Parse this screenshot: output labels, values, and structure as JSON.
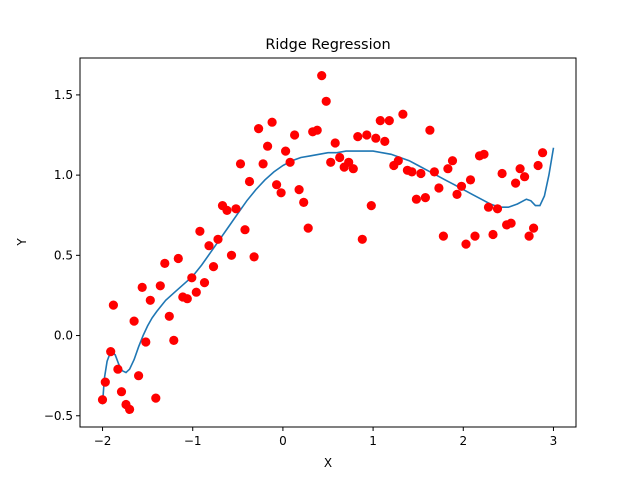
{
  "chart_data": {
    "type": "scatter",
    "title": "Ridge Regression",
    "xlabel": "X",
    "ylabel": "Y",
    "xlim": [
      -2.25,
      3.25
    ],
    "ylim": [
      -0.57,
      1.73
    ],
    "xticks": [
      -2,
      -1,
      0,
      1,
      2,
      3
    ],
    "yticks": [
      -0.5,
      0.0,
      0.5,
      1.0,
      1.5
    ],
    "ytick_labels": [
      "−0.5",
      "0.0",
      "0.5",
      "1.0",
      "1.5"
    ],
    "xtick_labels": [
      "−2",
      "−1",
      "0",
      "1",
      "2",
      "3"
    ],
    "grid": false,
    "series": [
      {
        "kind": "scatter",
        "color": "#ff0000",
        "points": [
          [
            -2.0,
            -0.4
          ],
          [
            -1.97,
            -0.29
          ],
          [
            -1.91,
            -0.1
          ],
          [
            -1.88,
            0.19
          ],
          [
            -1.83,
            -0.21
          ],
          [
            -1.79,
            -0.35
          ],
          [
            -1.74,
            -0.43
          ],
          [
            -1.7,
            -0.46
          ],
          [
            -1.65,
            0.09
          ],
          [
            -1.6,
            -0.25
          ],
          [
            -1.56,
            0.3
          ],
          [
            -1.52,
            -0.04
          ],
          [
            -1.47,
            0.22
          ],
          [
            -1.41,
            -0.39
          ],
          [
            -1.36,
            0.31
          ],
          [
            -1.31,
            0.45
          ],
          [
            -1.26,
            0.12
          ],
          [
            -1.21,
            -0.03
          ],
          [
            -1.16,
            0.48
          ],
          [
            -1.11,
            0.24
          ],
          [
            -1.06,
            0.23
          ],
          [
            -1.01,
            0.36
          ],
          [
            -0.96,
            0.27
          ],
          [
            -0.92,
            0.65
          ],
          [
            -0.87,
            0.33
          ],
          [
            -0.82,
            0.56
          ],
          [
            -0.77,
            0.43
          ],
          [
            -0.72,
            0.6
          ],
          [
            -0.67,
            0.81
          ],
          [
            -0.62,
            0.78
          ],
          [
            -0.57,
            0.5
          ],
          [
            -0.52,
            0.79
          ],
          [
            -0.47,
            1.07
          ],
          [
            -0.42,
            0.66
          ],
          [
            -0.37,
            0.96
          ],
          [
            -0.32,
            0.49
          ],
          [
            -0.27,
            1.29
          ],
          [
            -0.22,
            1.07
          ],
          [
            -0.17,
            1.18
          ],
          [
            -0.12,
            1.33
          ],
          [
            -0.07,
            0.94
          ],
          [
            -0.02,
            0.89
          ],
          [
            0.03,
            1.15
          ],
          [
            0.08,
            1.08
          ],
          [
            0.13,
            1.25
          ],
          [
            0.18,
            0.91
          ],
          [
            0.23,
            0.83
          ],
          [
            0.28,
            0.67
          ],
          [
            0.33,
            1.27
          ],
          [
            0.38,
            1.28
          ],
          [
            0.43,
            1.62
          ],
          [
            0.48,
            1.46
          ],
          [
            0.53,
            1.08
          ],
          [
            0.58,
            1.2
          ],
          [
            0.63,
            1.11
          ],
          [
            0.68,
            1.05
          ],
          [
            0.73,
            1.08
          ],
          [
            0.78,
            1.04
          ],
          [
            0.83,
            1.24
          ],
          [
            0.88,
            0.6
          ],
          [
            0.93,
            1.25
          ],
          [
            0.98,
            0.81
          ],
          [
            1.03,
            1.23
          ],
          [
            1.08,
            1.34
          ],
          [
            1.13,
            1.21
          ],
          [
            1.18,
            1.34
          ],
          [
            1.23,
            1.06
          ],
          [
            1.28,
            1.09
          ],
          [
            1.33,
            1.38
          ],
          [
            1.38,
            1.03
          ],
          [
            1.43,
            1.02
          ],
          [
            1.48,
            0.85
          ],
          [
            1.53,
            1.01
          ],
          [
            1.58,
            0.86
          ],
          [
            1.63,
            1.28
          ],
          [
            1.68,
            1.02
          ],
          [
            1.73,
            0.92
          ],
          [
            1.78,
            0.62
          ],
          [
            1.83,
            1.04
          ],
          [
            1.88,
            1.09
          ],
          [
            1.93,
            0.88
          ],
          [
            1.98,
            0.93
          ],
          [
            2.03,
            0.57
          ],
          [
            2.08,
            0.97
          ],
          [
            2.13,
            0.62
          ],
          [
            2.18,
            1.12
          ],
          [
            2.23,
            1.13
          ],
          [
            2.28,
            0.8
          ],
          [
            2.33,
            0.63
          ],
          [
            2.38,
            0.79
          ],
          [
            2.43,
            1.01
          ],
          [
            2.48,
            0.69
          ],
          [
            2.53,
            0.7
          ],
          [
            2.58,
            0.95
          ],
          [
            2.63,
            1.04
          ],
          [
            2.68,
            0.99
          ],
          [
            2.73,
            0.62
          ],
          [
            2.78,
            0.67
          ],
          [
            2.83,
            1.06
          ],
          [
            2.88,
            1.14
          ]
        ]
      },
      {
        "kind": "line",
        "color": "#1f77b4",
        "points": [
          [
            -2.0,
            -0.43
          ],
          [
            -1.98,
            -0.27
          ],
          [
            -1.95,
            -0.16
          ],
          [
            -1.91,
            -0.1
          ],
          [
            -1.86,
            -0.12
          ],
          [
            -1.82,
            -0.18
          ],
          [
            -1.78,
            -0.22
          ],
          [
            -1.74,
            -0.23
          ],
          [
            -1.7,
            -0.21
          ],
          [
            -1.65,
            -0.15
          ],
          [
            -1.6,
            -0.07
          ],
          [
            -1.55,
            0.0
          ],
          [
            -1.5,
            0.06
          ],
          [
            -1.45,
            0.11
          ],
          [
            -1.4,
            0.15
          ],
          [
            -1.3,
            0.22
          ],
          [
            -1.2,
            0.27
          ],
          [
            -1.1,
            0.32
          ],
          [
            -1.0,
            0.37
          ],
          [
            -0.9,
            0.44
          ],
          [
            -0.8,
            0.52
          ],
          [
            -0.7,
            0.6
          ],
          [
            -0.6,
            0.68
          ],
          [
            -0.5,
            0.76
          ],
          [
            -0.4,
            0.84
          ],
          [
            -0.3,
            0.91
          ],
          [
            -0.2,
            0.97
          ],
          [
            -0.1,
            1.02
          ],
          [
            0.0,
            1.06
          ],
          [
            0.1,
            1.09
          ],
          [
            0.2,
            1.11
          ],
          [
            0.3,
            1.12
          ],
          [
            0.4,
            1.13
          ],
          [
            0.5,
            1.14
          ],
          [
            0.6,
            1.14
          ],
          [
            0.7,
            1.15
          ],
          [
            0.8,
            1.15
          ],
          [
            0.9,
            1.15
          ],
          [
            1.0,
            1.15
          ],
          [
            1.1,
            1.14
          ],
          [
            1.2,
            1.13
          ],
          [
            1.3,
            1.11
          ],
          [
            1.4,
            1.09
          ],
          [
            1.5,
            1.06
          ],
          [
            1.6,
            1.03
          ],
          [
            1.7,
            1.0
          ],
          [
            1.8,
            0.97
          ],
          [
            1.9,
            0.94
          ],
          [
            2.0,
            0.91
          ],
          [
            2.1,
            0.88
          ],
          [
            2.2,
            0.85
          ],
          [
            2.3,
            0.82
          ],
          [
            2.4,
            0.8
          ],
          [
            2.5,
            0.8
          ],
          [
            2.6,
            0.82
          ],
          [
            2.7,
            0.85
          ],
          [
            2.75,
            0.84
          ],
          [
            2.8,
            0.81
          ],
          [
            2.85,
            0.81
          ],
          [
            2.9,
            0.87
          ],
          [
            2.95,
            1.0
          ],
          [
            3.0,
            1.17
          ]
        ]
      }
    ]
  }
}
